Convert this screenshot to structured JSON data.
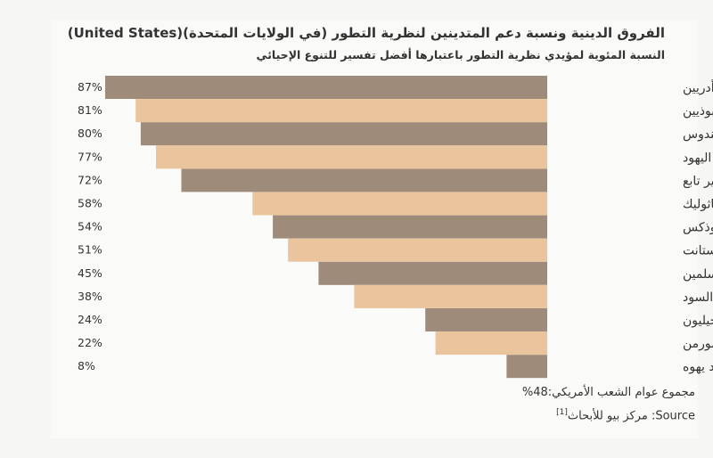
{
  "colors": {
    "dark": "#9f8b7a",
    "light": "#e9c49c",
    "text": "#333333"
  },
  "chart_data": {
    "type": "bar",
    "orientation": "horizontal",
    "title": "الفروق الدينية ونسبة دعم المتدينين لنظرية التطور (في الولايات المتحدة)(United States)",
    "subtitle": "النسبة المئوية لمؤيدي نظرية التطور باعتبارها أفضل تفسير للتنوع الإحيائي",
    "categories": [
      "الملحدين واللا أدريين",
      "البوذيين",
      "الهندوس",
      "اليهود",
      "غير تابع",
      "الكاثوليك",
      "الأرثوذكس",
      "البروتستانت",
      "المسلمين",
      "البروتستانت السود",
      "البروتستانت الإنجيليون",
      "المورمن",
      "شهود يهوه"
    ],
    "values": [
      87,
      81,
      80,
      77,
      72,
      58,
      54,
      51,
      45,
      38,
      24,
      22,
      8
    ],
    "value_labels": [
      "87%",
      "81%",
      "80%",
      "77%",
      "72%",
      "58%",
      "54%",
      "51%",
      "45%",
      "38%",
      "24%",
      "22%",
      "8%"
    ],
    "xlim": [
      0,
      87
    ],
    "bar_direction": "right-to-left",
    "grid": false,
    "alternating_colors": [
      "dark",
      "light"
    ]
  },
  "footer": {
    "total": "مجموع عوام الشعب الأمريكي:48%",
    "source_label": "Source",
    "source_text": ": مركز بيو للأبحاث",
    "source_ref": "[1]"
  }
}
